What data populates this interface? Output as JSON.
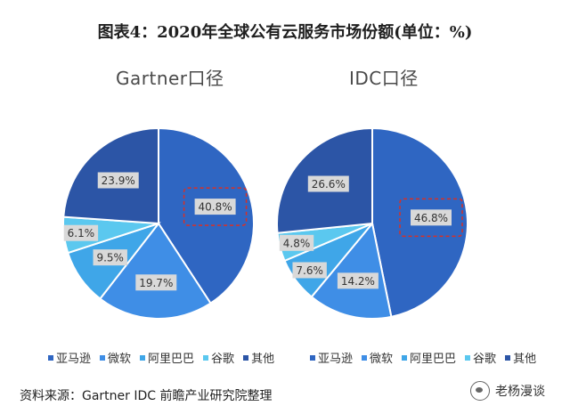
{
  "title": "图表4：2020年全球公有云服务市场份额(单位：%)",
  "source": "资料来源：Gartner IDC 前瞻产业研究院整理",
  "watermark": "老杨漫谈",
  "chart_data": [
    {
      "type": "pie",
      "title": "Gartner口径",
      "labels": [
        "亚马逊",
        "微软",
        "阿里巴巴",
        "谷歌",
        "其他"
      ],
      "values": [
        40.8,
        19.7,
        9.5,
        6.1,
        23.9
      ],
      "value_labels": [
        "40.8%",
        "19.7%",
        "9.5%",
        "6.1%",
        "23.9%"
      ],
      "colors": [
        "#2f66c2",
        "#3f8ee6",
        "#3fa6e8",
        "#5bc8ef",
        "#2c55a6"
      ],
      "highlight": "亚马逊",
      "legend": "bottom"
    },
    {
      "type": "pie",
      "title": "IDC口径",
      "labels": [
        "亚马逊",
        "微软",
        "阿里巴巴",
        "谷歌",
        "其他"
      ],
      "values": [
        46.8,
        14.2,
        7.6,
        4.8,
        26.6
      ],
      "value_labels": [
        "46.8%",
        "14.2%",
        "7.6%",
        "4.8%",
        "26.6%"
      ],
      "colors": [
        "#2f66c2",
        "#3f8ee6",
        "#3fa6e8",
        "#5bc8ef",
        "#2c55a6"
      ],
      "highlight": "亚马逊",
      "legend": "bottom"
    }
  ]
}
